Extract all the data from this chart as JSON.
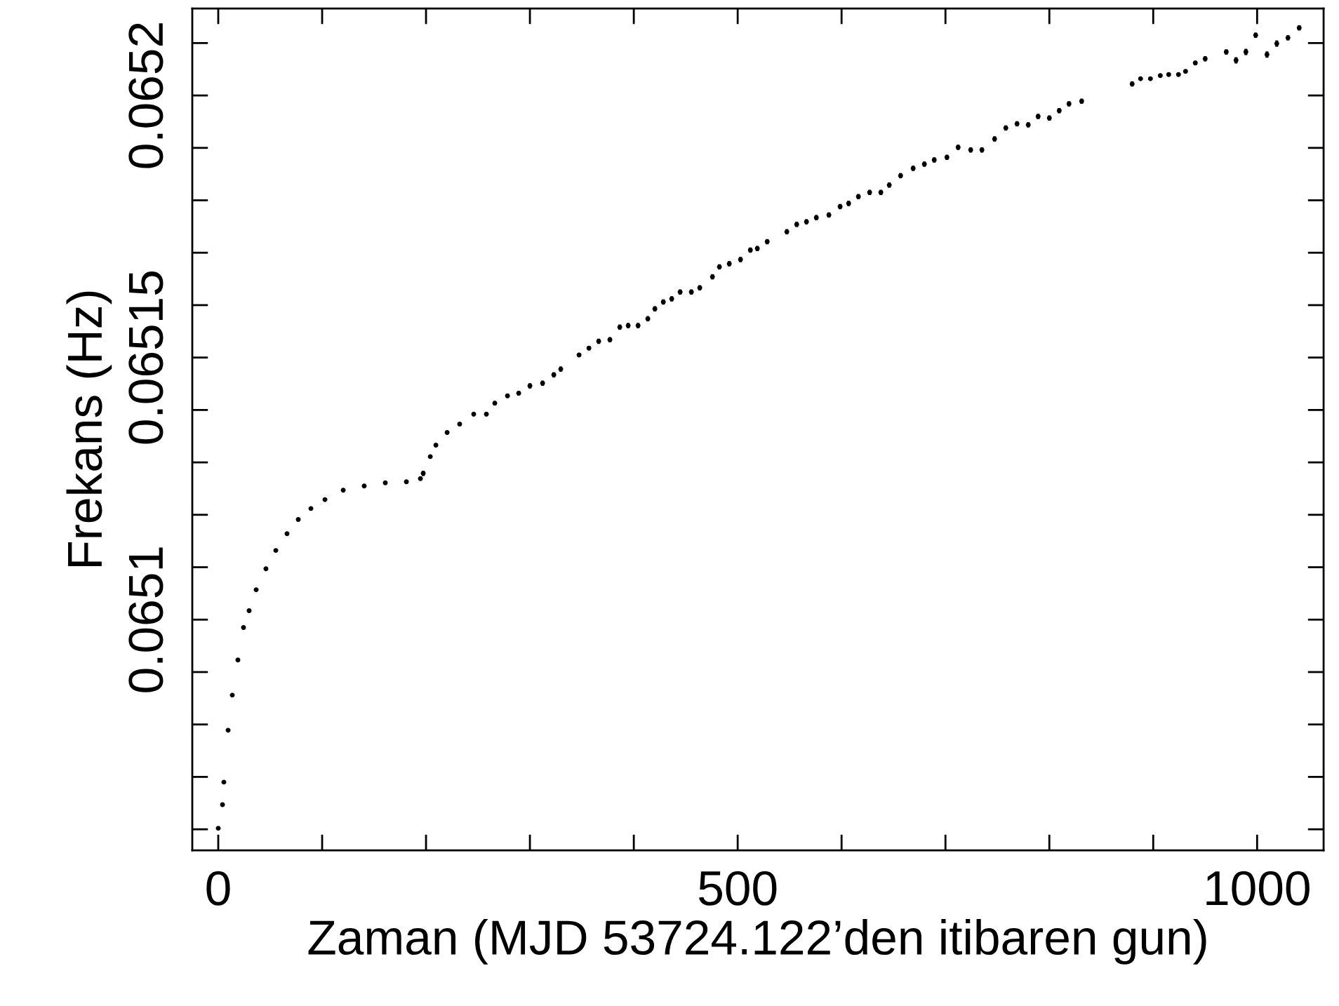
{
  "chart_data": {
    "type": "scatter",
    "xlabel": "Zaman (MJD 53724.122’den itibaren gun)",
    "ylabel": "Frekans (Hz)",
    "xlim": [
      -25,
      1064
    ],
    "ylim": [
      0.065056,
      0.0652166
    ],
    "xticks": [
      0,
      {
        "value": 100,
        "label": null
      },
      {
        "value": 200,
        "label": null
      },
      {
        "value": 300,
        "label": null
      },
      {
        "value": 400,
        "label": null
      },
      500,
      {
        "value": 600,
        "label": null
      },
      {
        "value": 700,
        "label": null
      },
      {
        "value": 800,
        "label": null
      },
      {
        "value": 900,
        "label": null
      },
      1000
    ],
    "yticks": [
      {
        "value": 0.06506,
        "label": null
      },
      {
        "value": 0.06507,
        "label": null
      },
      {
        "value": 0.06508,
        "label": null
      },
      {
        "value": 0.06509,
        "label": null
      },
      0.0651,
      {
        "value": 0.06511,
        "label": null
      },
      {
        "value": 0.06512,
        "label": null
      },
      {
        "value": 0.06513,
        "label": null
      },
      {
        "value": 0.06514,
        "label": null
      },
      0.06515,
      {
        "value": 0.06516,
        "label": null
      },
      {
        "value": 0.06517,
        "label": null
      },
      {
        "value": 0.06518,
        "label": null
      },
      {
        "value": 0.06519,
        "label": null
      },
      0.0652,
      {
        "value": 0.06521,
        "label": null
      }
    ],
    "grid": false,
    "marker": "circle",
    "series": [
      {
        "color": "#000000",
        "x": [
          0,
          4.1,
          5.4,
          9.5,
          13.5,
          18.9,
          24.3,
          29.7,
          36.5,
          45.9,
          55.4,
          66.2,
          77.0,
          89.2,
          102.7,
          120.3,
          140.5,
          160.8,
          181.1,
          194.6,
          197.3,
          204.1,
          209.5,
          220.3,
          232.4,
          245.9,
          258.1,
          266.2,
          278.4,
          289.2,
          300.0,
          312.2,
          323.0,
          329.7,
          347.3,
          356.8,
          366.2,
          377.0,
          386.5,
          394.6,
          404.1,
          413.5,
          420.3,
          428.4,
          436.5,
          444.6,
          455.4,
          463.5,
          475.7,
          482.4,
          491.9,
          502.7,
          512.2,
          518.9,
          528.4,
          547.3,
          556.8,
          566.2,
          575.7,
          587.8,
          598.6,
          606.8,
          616.2,
          627.0,
          637.8,
          645.9,
          656.8,
          668.9,
          679.7,
          689.2,
          701.4,
          712.2,
          724.3,
          735.1,
          747.3,
          758.1,
          768.9,
          779.7,
          789.2,
          800.0,
          809.5,
          818.9,
          831.1,
          879.7,
          887.8,
          897.3,
          906.8,
          914.9,
          924.3,
          931.1,
          940.5,
          950.0,
          970.3,
          979.7,
          989.2,
          998.6,
          1009.5,
          1018.9,
          1029.7,
          1040.5
        ],
        "values": [
          0.0650602,
          0.0650647,
          0.065069,
          0.0650789,
          0.0650856,
          0.0650923,
          0.0650985,
          0.0651017,
          0.0651057,
          0.0651097,
          0.0651132,
          0.0651164,
          0.0651191,
          0.0651212,
          0.0651229,
          0.0651247,
          0.0651255,
          0.0651261,
          0.0651263,
          0.0651269,
          0.0651279,
          0.0651311,
          0.0651333,
          0.0651357,
          0.0651373,
          0.0651392,
          0.0651392,
          0.0651413,
          0.0651427,
          0.0651432,
          0.0651446,
          0.0651451,
          0.0651467,
          0.0651478,
          0.0651505,
          0.0651518,
          0.0651531,
          0.0651534,
          0.0651558,
          0.0651561,
          0.0651561,
          0.0651574,
          0.0651593,
          0.0651606,
          0.0651612,
          0.0651625,
          0.0651625,
          0.0651633,
          0.0651654,
          0.0651673,
          0.0651679,
          0.0651687,
          0.0651705,
          0.0651708,
          0.0651721,
          0.065174,
          0.0651754,
          0.0651759,
          0.0651767,
          0.0651772,
          0.0651788,
          0.0651794,
          0.0651807,
          0.0651815,
          0.0651815,
          0.0651829,
          0.0651847,
          0.0651861,
          0.0651869,
          0.0651877,
          0.0651882,
          0.0651901,
          0.0651896,
          0.0651896,
          0.0651917,
          0.0651938,
          0.0651946,
          0.0651944,
          0.065196,
          0.0651957,
          0.0651971,
          0.0651984,
          0.0651989,
          0.0652022,
          0.0652032,
          0.0652032,
          0.0652038,
          0.065204,
          0.065204,
          0.0652046,
          0.0652062,
          0.065207,
          0.0652083,
          0.0652067,
          0.0652083,
          0.0652115,
          0.0652078,
          0.0652099,
          0.065211,
          0.0652129
        ],
        "errors": [
          3e-07,
          null,
          null,
          null,
          null,
          null,
          null,
          null,
          null,
          null,
          null,
          null,
          null,
          null,
          null,
          null,
          null,
          null,
          null,
          null,
          5e-07,
          null,
          null,
          3e-07,
          null,
          4e-07,
          4e-07,
          4e-07,
          4e-07,
          4e-07,
          5e-07,
          5e-07,
          5e-07,
          5e-07,
          4e-07,
          4e-07,
          5e-07,
          5e-07,
          5e-07,
          5e-07,
          5e-07,
          5e-07,
          5e-07,
          5e-07,
          5e-07,
          5e-07,
          5e-07,
          5e-07,
          5e-07,
          5e-07,
          5e-07,
          5e-07,
          5e-07,
          5e-07,
          5e-07,
          5e-07,
          5e-07,
          5e-07,
          5e-07,
          5e-07,
          5e-07,
          5e-07,
          5e-07,
          5e-07,
          5e-07,
          5e-07,
          5e-07,
          5e-07,
          5e-07,
          5e-07,
          5e-07,
          5e-07,
          5e-07,
          5e-07,
          5e-07,
          5e-07,
          5e-07,
          5e-07,
          5e-07,
          5e-07,
          5e-07,
          5e-07,
          5e-07,
          5e-07,
          3e-07,
          2e-07,
          2e-07,
          2e-07,
          2e-07,
          2e-07,
          4e-07,
          5e-07,
          5e-07,
          6e-07,
          6e-07,
          5e-07,
          6e-07,
          6e-07,
          5e-07,
          5e-07
        ]
      }
    ]
  }
}
